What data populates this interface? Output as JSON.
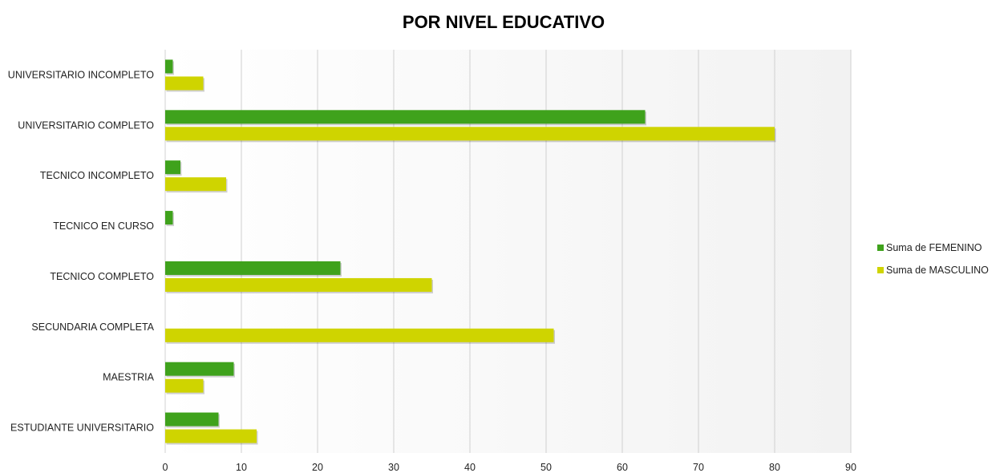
{
  "chart_data": {
    "type": "bar",
    "orientation": "horizontal",
    "title": "POR NIVEL EDUCATIVO",
    "xlabel": "",
    "ylabel": "",
    "categories": [
      "UNIVERSITARIO INCOMPLETO",
      "UNIVERSITARIO COMPLETO",
      "TECNICO INCOMPLETO",
      "TECNICO EN CURSO",
      "TECNICO COMPLETO",
      "SECUNDARIA COMPLETA",
      "MAESTRIA",
      "ESTUDIANTE UNIVERSITARIO"
    ],
    "series": [
      {
        "name": "Suma de FEMENINO",
        "color": "#3fa21c",
        "values": [
          1,
          63,
          2,
          1,
          23,
          0,
          9,
          7
        ]
      },
      {
        "name": "Suma de MASCULINO",
        "color": "#cfd400",
        "values": [
          5,
          80,
          8,
          0,
          35,
          51,
          5,
          12
        ]
      }
    ],
    "xlim": [
      0,
      90
    ],
    "xticks": [
      0,
      10,
      20,
      30,
      40,
      50,
      60,
      70,
      80,
      90
    ],
    "grid": true,
    "legend_position": "right"
  }
}
